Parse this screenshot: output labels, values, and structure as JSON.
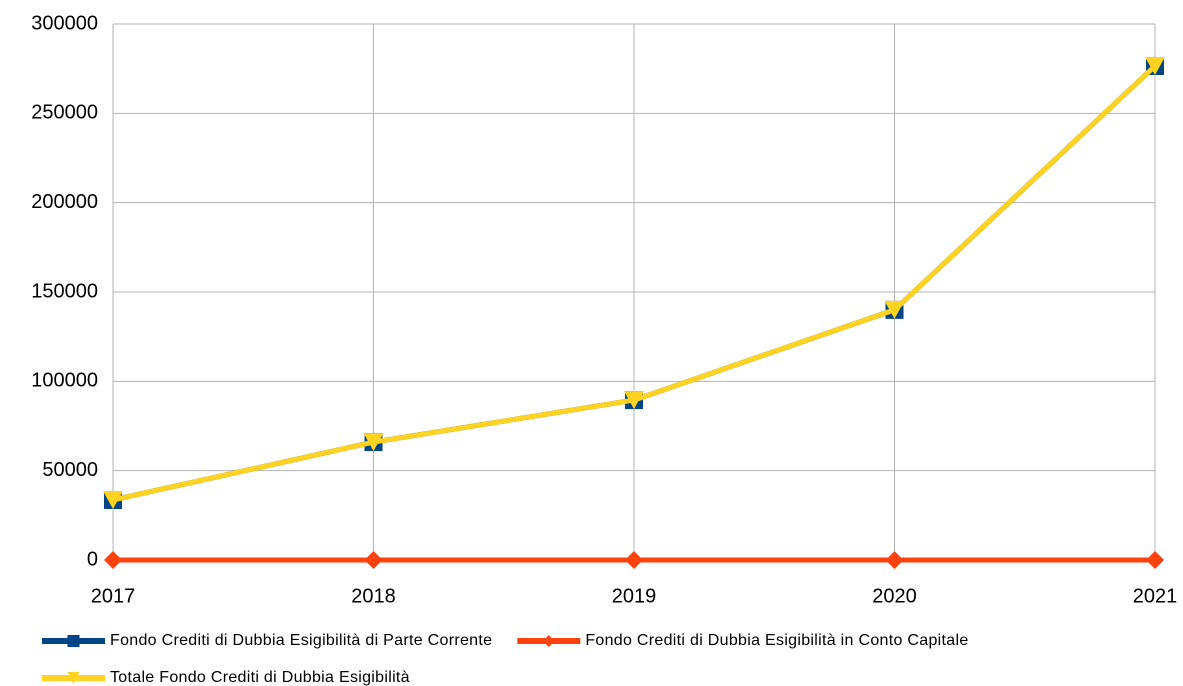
{
  "chart_data": {
    "type": "line",
    "categories": [
      "2017",
      "2018",
      "2019",
      "2020",
      "2021"
    ],
    "series": [
      {
        "name": "Fondo Crediti di Dubbia Esigibilità di Parte Corrente",
        "color": "#004586",
        "marker": "square",
        "values": [
          33600,
          66000,
          89500,
          140000,
          276500
        ]
      },
      {
        "name": "Fondo Crediti di Dubbia Esigibilità in Conto Capitale",
        "color": "#ff420e",
        "marker": "diamond",
        "values": [
          0,
          0,
          0,
          0,
          0
        ]
      },
      {
        "name": "Totale Fondo Crediti di Dubbia Esigibilità",
        "color": "#ffd320",
        "marker": "triangle-down",
        "values": [
          33600,
          66000,
          89500,
          140000,
          276500
        ]
      }
    ],
    "ylim": [
      0,
      300000
    ],
    "yticks": [
      0,
      50000,
      100000,
      150000,
      200000,
      250000,
      300000
    ],
    "grid": true,
    "legend": "bottom"
  }
}
